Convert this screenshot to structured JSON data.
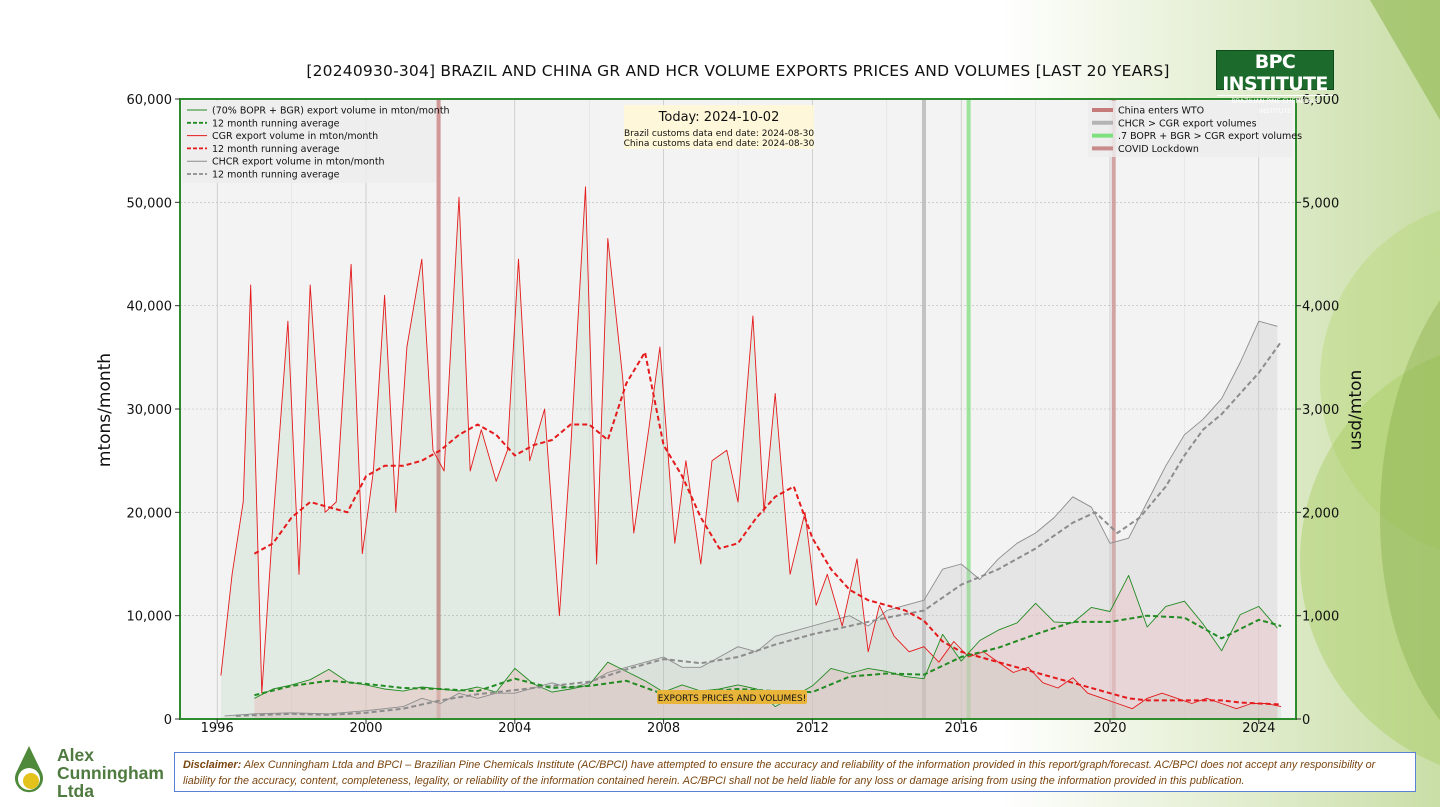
{
  "title": "[20240930-304] BRAZIL AND CHINA GR AND HCR VOLUME EXPORTS PRICES AND VOLUMES [LAST 20 YEARS]",
  "logo": {
    "main": "BPC INSTITUTE",
    "sub": "BRAZILIAN PINE CHEMICALS INSTITUTE"
  },
  "company": {
    "line1": "Alex",
    "line2": "Cunningham",
    "line3": "Ltda"
  },
  "disclaimer": {
    "label": "Disclaimer:",
    "text": " Alex Cunningham Ltda and BPCI – Brazilian Pine Chemicals Institute (AC/BPCI) have attempted to ensure the accuracy and reliability of the information provided in this report/graph/forecast. AC/BPCI does not accept any responsibility or liability for the accuracy, content, completeness, legality, or reliability of the information contained herein. AC/BPCI shall not be held liable for any loss or damage arising from using the information provided in this publication."
  },
  "colors": {
    "frame": "#2e8b2e",
    "cgr": "#e41a1c",
    "green": "#238b23",
    "chcr": "#8c8c8c",
    "wto": "#c77a7a",
    "chcr_event": "#b4b4b4",
    "bopr_event": "#7fe07f",
    "covid": "#c98a8a",
    "plot_bg": "#f3f3f3",
    "badge": "#e8b53a"
  },
  "chart_data": {
    "type": "line",
    "title": "[20240930-304] BRAZIL AND CHINA GR AND HCR VOLUME EXPORTS PRICES AND VOLUMES [LAST 20 YEARS]",
    "xlabel": "",
    "ylabel": "mtons/month",
    "ylabel_right": "usd/mton",
    "xlim": [
      1995.0,
      2025.0
    ],
    "ylim": [
      0,
      60000
    ],
    "ylim_right": [
      0,
      6000
    ],
    "x_ticks": [
      1996,
      2000,
      2004,
      2008,
      2012,
      2016,
      2020,
      2024
    ],
    "y_ticks": [
      0,
      10000,
      20000,
      30000,
      40000,
      50000,
      60000
    ],
    "y_tick_labels": [
      "0",
      "10,000",
      "20,000",
      "30,000",
      "40,000",
      "50,000",
      "60,000"
    ],
    "y_ticks_right": [
      0,
      1000,
      2000,
      3000,
      4000,
      5000,
      6000
    ],
    "y_tick_labels_right": [
      "0",
      "1,000",
      "2,000",
      "3,000",
      "4,000",
      "5,000",
      "6,000"
    ],
    "grid": true,
    "legend_left_position": "top-left",
    "legend_right_position": "top-right",
    "today_label": "Today: 2024-10-02",
    "brazil_date_label": "Brazil customs data end date: 2024-08-30",
    "china_date_label": "China customs data end date: 2024-08-30",
    "badge_label": "EXPORTS PRICES AND VOLUMES!",
    "series": [
      {
        "name": "(70% BOPR + BGR) export volume in mton/month",
        "style": "solid",
        "color": "#238b23",
        "fill": true,
        "x": [
          1997.0,
          1997.5,
          1998.0,
          1998.5,
          1999.0,
          1999.5,
          2000.0,
          2000.5,
          2001.0,
          2001.5,
          2002.0,
          2002.5,
          2003.0,
          2003.5,
          2004.0,
          2004.5,
          2005.0,
          2005.5,
          2006.0,
          2006.5,
          2007.0,
          2007.5,
          2008.0,
          2008.5,
          2009.0,
          2009.5,
          2010.0,
          2010.5,
          2011.0,
          2011.5,
          2012.0,
          2012.5,
          2013.0,
          2013.5,
          2014.0,
          2014.5,
          2015.0,
          2015.5,
          2016.0,
          2016.5,
          2017.0,
          2017.5,
          2018.0,
          2018.5,
          2019.0,
          2019.5,
          2020.0,
          2020.5,
          2021.0,
          2021.5,
          2022.0,
          2022.5,
          2023.0,
          2023.5,
          2024.0,
          2024.5
        ],
        "y": [
          2000,
          2900,
          3300,
          3800,
          4800,
          3600,
          3300,
          2900,
          2700,
          3100,
          2900,
          2700,
          3100,
          2600,
          4900,
          3400,
          2600,
          2900,
          3300,
          5500,
          4600,
          3700,
          2600,
          3300,
          2700,
          2900,
          3300,
          2900,
          1200,
          2200,
          3200,
          4900,
          4400,
          4900,
          4600,
          4100,
          3900,
          8200,
          5600,
          7600,
          8600,
          9300,
          11200,
          9400,
          9300,
          10800,
          10400,
          13900,
          8900,
          10900,
          11400,
          9200,
          6600,
          10100,
          10900,
          8800
        ]
      },
      {
        "name": "12 month running average",
        "style": "dashed",
        "color": "#238b23",
        "x": [
          1997.0,
          1998.0,
          1999.0,
          2000.0,
          2001.0,
          2002.0,
          2003.0,
          2004.0,
          2005.0,
          2006.0,
          2007.0,
          2008.0,
          2009.0,
          2010.0,
          2011.0,
          2012.0,
          2013.0,
          2014.0,
          2015.0,
          2016.0,
          2017.0,
          2018.0,
          2019.0,
          2020.0,
          2021.0,
          2022.0,
          2023.0,
          2024.0,
          2024.6
        ],
        "y": [
          2300,
          3200,
          3700,
          3400,
          3000,
          2900,
          2700,
          3900,
          3000,
          3200,
          3700,
          2400,
          2600,
          2900,
          2700,
          2600,
          4100,
          4400,
          4300,
          6000,
          6900,
          8200,
          9400,
          9400,
          10000,
          9800,
          7800,
          9600,
          9000
        ]
      },
      {
        "name": "CGR export volume in mton/month",
        "style": "solid",
        "color": "#e41a1c",
        "fill": true,
        "x": [
          1996.1,
          1996.4,
          1996.7,
          1996.9,
          1997.2,
          1997.5,
          1997.9,
          1998.2,
          1998.5,
          1998.9,
          1999.2,
          1999.6,
          1999.9,
          2000.2,
          2000.5,
          2000.8,
          2001.1,
          2001.5,
          2001.8,
          2002.1,
          2002.5,
          2002.8,
          2003.1,
          2003.5,
          2003.8,
          2004.1,
          2004.4,
          2004.8,
          2005.2,
          2005.5,
          2005.9,
          2006.2,
          2006.5,
          2006.9,
          2007.2,
          2007.6,
          2007.9,
          2008.3,
          2008.6,
          2009.0,
          2009.3,
          2009.7,
          2010.0,
          2010.4,
          2010.7,
          2011.0,
          2011.4,
          2011.8,
          2012.1,
          2012.4,
          2012.8,
          2013.2,
          2013.5,
          2013.8,
          2014.2,
          2014.6,
          2015.0,
          2015.4,
          2015.8,
          2016.2,
          2016.6,
          2017.0,
          2017.4,
          2017.8,
          2018.2,
          2018.6,
          2019.0,
          2019.4,
          2019.8,
          2020.2,
          2020.6,
          2021.0,
          2021.4,
          2021.8,
          2022.2,
          2022.6,
          2023.0,
          2023.4,
          2023.8,
          2024.2,
          2024.6
        ],
        "y": [
          4200,
          14000,
          21000,
          42000,
          2500,
          19000,
          38500,
          14000,
          42000,
          20000,
          21000,
          44000,
          16000,
          24000,
          41000,
          20000,
          36000,
          44500,
          26000,
          24000,
          50500,
          24000,
          28000,
          23000,
          26000,
          44500,
          25000,
          30000,
          10000,
          26000,
          51500,
          15000,
          46500,
          33000,
          18000,
          28000,
          36000,
          17000,
          25000,
          15000,
          25000,
          26000,
          21000,
          39000,
          20000,
          31500,
          14000,
          20000,
          11000,
          14000,
          9000,
          15500,
          6500,
          11000,
          8000,
          6500,
          7000,
          5500,
          7500,
          6000,
          6500,
          5500,
          4500,
          5000,
          3500,
          3000,
          4000,
          2500,
          2000,
          1500,
          1000,
          2000,
          2500,
          2000,
          1500,
          2000,
          1500,
          1000,
          1500,
          1500,
          1200
        ]
      },
      {
        "name": "12 month running average",
        "style": "dashed",
        "color": "#e41a1c",
        "x": [
          1997.0,
          1997.5,
          1998.0,
          1998.5,
          1999.0,
          1999.5,
          2000.0,
          2000.5,
          2001.0,
          2001.5,
          2002.0,
          2002.5,
          2003.0,
          2003.5,
          2004.0,
          2004.5,
          2005.0,
          2005.5,
          2006.0,
          2006.5,
          2007.0,
          2007.5,
          2008.0,
          2008.5,
          2009.0,
          2009.5,
          2010.0,
          2010.5,
          2011.0,
          2011.5,
          2012.0,
          2012.5,
          2013.0,
          2013.5,
          2014.0,
          2014.5,
          2015.0,
          2015.5,
          2016.0,
          2016.5,
          2017.0,
          2017.5,
          2018.0,
          2018.5,
          2019.0,
          2019.5,
          2020.0,
          2020.5,
          2021.0,
          2021.5,
          2022.0,
          2022.5,
          2023.0,
          2023.5,
          2024.0,
          2024.6
        ],
        "y": [
          16000,
          17000,
          19500,
          21000,
          20500,
          20000,
          23500,
          24500,
          24500,
          25000,
          26000,
          27500,
          28500,
          27500,
          25500,
          26500,
          27000,
          28500,
          28500,
          27000,
          32500,
          35500,
          26500,
          23500,
          19500,
          16500,
          17000,
          19500,
          21500,
          22500,
          17500,
          14500,
          12500,
          11500,
          11000,
          10500,
          9500,
          7500,
          6500,
          6000,
          5500,
          5000,
          4500,
          4000,
          3500,
          3000,
          2500,
          2000,
          1800,
          1800,
          1800,
          1800,
          1800,
          1600,
          1500,
          1400
        ]
      },
      {
        "name": "CHCR export volume in mton/month",
        "style": "solid",
        "color": "#8c8c8c",
        "fill": true,
        "x": [
          1996.2,
          1997.0,
          1998.0,
          1999.0,
          2000.0,
          2001.0,
          2001.5,
          2002.0,
          2002.5,
          2003.0,
          2003.5,
          2004.0,
          2004.5,
          2005.0,
          2005.5,
          2006.0,
          2006.5,
          2007.0,
          2007.5,
          2008.0,
          2008.5,
          2009.0,
          2009.5,
          2010.0,
          2010.5,
          2011.0,
          2011.5,
          2012.0,
          2012.5,
          2013.0,
          2013.5,
          2014.0,
          2014.5,
          2015.0,
          2015.5,
          2016.0,
          2016.5,
          2017.0,
          2017.5,
          2018.0,
          2018.5,
          2019.0,
          2019.5,
          2020.0,
          2020.5,
          2021.0,
          2021.5,
          2022.0,
          2022.5,
          2023.0,
          2023.5,
          2024.0,
          2024.5
        ],
        "y": [
          300,
          500,
          600,
          500,
          800,
          1200,
          2000,
          1500,
          2500,
          2000,
          2500,
          2500,
          3000,
          3500,
          3000,
          3500,
          4500,
          5000,
          5500,
          6000,
          5000,
          5000,
          6000,
          7000,
          6500,
          8000,
          8500,
          9000,
          9500,
          10000,
          9000,
          10500,
          11000,
          11500,
          14500,
          15000,
          13500,
          15500,
          17000,
          18000,
          19500,
          21500,
          20500,
          17000,
          17500,
          21000,
          24500,
          27500,
          29000,
          31000,
          34500,
          38500,
          38000
        ]
      },
      {
        "name": "12 month running average",
        "style": "dashed",
        "color": "#8c8c8c",
        "x": [
          1996.5,
          1998.0,
          1999.0,
          2000.0,
          2001.0,
          2002.0,
          2003.0,
          2004.0,
          2005.0,
          2006.0,
          2007.0,
          2008.0,
          2009.0,
          2010.0,
          2011.0,
          2012.0,
          2013.0,
          2014.0,
          2015.0,
          2016.0,
          2017.0,
          2018.0,
          2019.0,
          2019.6,
          2020.2,
          2020.8,
          2021.5,
          2022.0,
          2022.5,
          2023.0,
          2023.5,
          2024.0,
          2024.6
        ],
        "y": [
          300,
          500,
          400,
          600,
          1000,
          1800,
          2400,
          2800,
          3200,
          3600,
          4800,
          5800,
          5400,
          6000,
          7200,
          8200,
          9000,
          9800,
          10500,
          13000,
          14500,
          16500,
          19000,
          20000,
          18000,
          19500,
          22500,
          25500,
          28000,
          29500,
          31500,
          33500,
          36500
        ]
      }
    ],
    "events": [
      {
        "name": "China enters WTO",
        "x": 2001.95,
        "color": "#c77a7a"
      },
      {
        "name": "CHCR > CGR export volumes",
        "x": 2015.0,
        "color": "#b4b4b4"
      },
      {
        "name": ".7 BOPR + BGR > CGR export volumes",
        "x": 2016.2,
        "color": "#7fe07f"
      },
      {
        "name": "COVID Lockdown",
        "x": 2020.1,
        "color": "#c98a8a"
      }
    ]
  }
}
